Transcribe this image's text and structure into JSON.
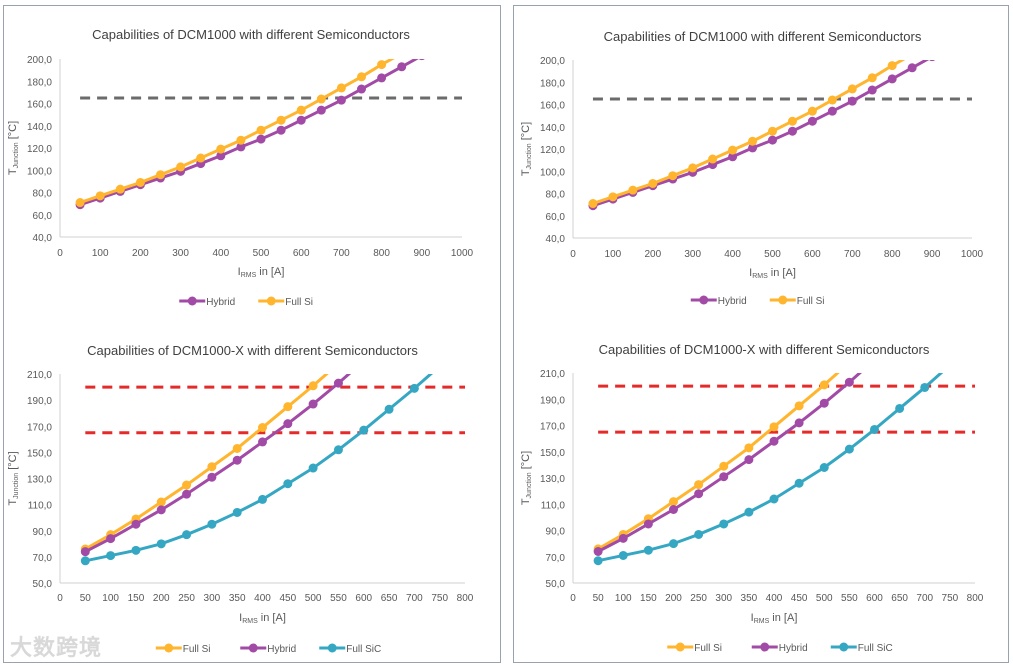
{
  "watermark": "大数跨境",
  "colors": {
    "full_si": "#FFB52E",
    "hybrid": "#A24BA6",
    "full_sic": "#35A7C3",
    "limit_grey": "#6b6b6b",
    "limit_red": "#E52A2A",
    "axis": "#d0d0d0",
    "text": "#595959"
  },
  "chart_data": [
    {
      "type": "line",
      "panel": "left",
      "title": "Capabilities of DCM1000 with different Semiconductors",
      "xlabel": "IRMS in [A]",
      "xlabel_main": "I",
      "xlabel_sub": "RMS",
      "xlabel_rest": " in [A]",
      "ylabel_main": "T",
      "ylabel_sub": "Junction",
      "ylabel_rest": " [°C]",
      "xlim": [
        0,
        1000
      ],
      "ylim": [
        40,
        200
      ],
      "xticks": [
        "0",
        "100",
        "200",
        "300",
        "400",
        "500",
        "600",
        "700",
        "800",
        "900",
        "1000"
      ],
      "yticks": [
        "40,0",
        "60,0",
        "80,0",
        "100,0",
        "120,0",
        "140,0",
        "160,0",
        "180,0",
        "200,0"
      ],
      "limits": [
        {
          "value": 165,
          "color": "limit_grey"
        }
      ],
      "x": [
        50,
        100,
        150,
        200,
        250,
        300,
        350,
        400,
        450,
        500,
        550,
        600,
        650,
        700,
        750,
        800,
        850,
        900
      ],
      "series": [
        {
          "name": "Hybrid",
          "color": "hybrid",
          "values": [
            69,
            75,
            81,
            87,
            93,
            99,
            106,
            113,
            121,
            128,
            136,
            145,
            154,
            163,
            173,
            183,
            193,
            203
          ]
        },
        {
          "name": "Full Si",
          "color": "full_si",
          "values": [
            71,
            77,
            83,
            89,
            96,
            103,
            111,
            119,
            127,
            136,
            145,
            154,
            164,
            174,
            184,
            195,
            205,
            null
          ]
        }
      ],
      "legend": "bottom"
    },
    {
      "type": "line",
      "panel": "left",
      "title": "Capabilities of DCM1000-X with different Semiconductors",
      "xlabel": "IRMS in [A]",
      "xlabel_main": "I",
      "xlabel_sub": "RMS",
      "xlabel_rest": " in [A]",
      "ylabel_main": "T",
      "ylabel_sub": "Junction",
      "ylabel_rest": " [°C]",
      "xlim": [
        0,
        800
      ],
      "ylim": [
        50,
        210
      ],
      "xticks": [
        "0",
        "50",
        "100",
        "150",
        "200",
        "250",
        "300",
        "350",
        "400",
        "450",
        "500",
        "550",
        "600",
        "650",
        "700",
        "750",
        "800"
      ],
      "yticks": [
        "50,0",
        "70,0",
        "90,0",
        "110,0",
        "130,0",
        "150,0",
        "170,0",
        "190,0",
        "210,0"
      ],
      "limits": [
        {
          "value": 165,
          "color": "limit_red"
        },
        {
          "value": 200,
          "color": "limit_red"
        }
      ],
      "x": [
        50,
        100,
        150,
        200,
        250,
        300,
        350,
        400,
        450,
        500,
        550,
        600,
        650,
        700,
        750
      ],
      "series": [
        {
          "name": "Full Si",
          "color": "full_si",
          "values": [
            76,
            87,
            99,
            112,
            125,
            139,
            153,
            169,
            185,
            201,
            218,
            null,
            null,
            null,
            null
          ]
        },
        {
          "name": "Hybrid",
          "color": "hybrid",
          "values": [
            74,
            84,
            95,
            106,
            118,
            131,
            144,
            158,
            172,
            187,
            203,
            220,
            null,
            null,
            null
          ]
        },
        {
          "name": "Full SiC",
          "color": "full_sic",
          "values": [
            67,
            71,
            75,
            80,
            87,
            95,
            104,
            114,
            126,
            138,
            152,
            167,
            183,
            199,
            216
          ]
        }
      ],
      "legend": "bottom"
    },
    {
      "type": "line",
      "panel": "right",
      "title": "Capabilities of DCM1000 with different Semiconductors",
      "xlabel": "IRMS in [A]",
      "xlabel_main": "I",
      "xlabel_sub": "RMS",
      "xlabel_rest": " in [A]",
      "ylabel_main": "T",
      "ylabel_sub": "Junction",
      "ylabel_rest": " [°C]",
      "xlim": [
        0,
        1000
      ],
      "ylim": [
        40,
        200
      ],
      "xticks": [
        "0",
        "100",
        "200",
        "300",
        "400",
        "500",
        "600",
        "700",
        "800",
        "900",
        "1000"
      ],
      "yticks": [
        "40,0",
        "60,0",
        "80,0",
        "100,0",
        "120,0",
        "140,0",
        "160,0",
        "180,0",
        "200,0"
      ],
      "limits": [
        {
          "value": 165,
          "color": "limit_grey"
        }
      ],
      "x": [
        50,
        100,
        150,
        200,
        250,
        300,
        350,
        400,
        450,
        500,
        550,
        600,
        650,
        700,
        750,
        800,
        850,
        900
      ],
      "series": [
        {
          "name": "Hybrid",
          "color": "hybrid",
          "values": [
            69,
            75,
            81,
            87,
            93,
            99,
            106,
            113,
            121,
            128,
            136,
            145,
            154,
            163,
            173,
            183,
            193,
            203
          ]
        },
        {
          "name": "Full Si",
          "color": "full_si",
          "values": [
            71,
            77,
            83,
            89,
            96,
            103,
            111,
            119,
            127,
            136,
            145,
            154,
            164,
            174,
            184,
            195,
            205,
            null
          ]
        }
      ],
      "legend": "bottom"
    },
    {
      "type": "line",
      "panel": "right",
      "title": "Capabilities of DCM1000-X with different Semiconductors",
      "xlabel": "IRMS in [A]",
      "xlabel_main": "I",
      "xlabel_sub": "RMS",
      "xlabel_rest": " in [A]",
      "ylabel_main": "T",
      "ylabel_sub": "Junction",
      "ylabel_rest": " [°C]",
      "xlim": [
        0,
        800
      ],
      "ylim": [
        50,
        210
      ],
      "xticks": [
        "0",
        "50",
        "100",
        "150",
        "200",
        "250",
        "300",
        "350",
        "400",
        "450",
        "500",
        "550",
        "600",
        "650",
        "700",
        "750",
        "800"
      ],
      "yticks": [
        "50,0",
        "70,0",
        "90,0",
        "110,0",
        "130,0",
        "150,0",
        "170,0",
        "190,0",
        "210,0"
      ],
      "limits": [
        {
          "value": 165,
          "color": "limit_red"
        },
        {
          "value": 200,
          "color": "limit_red"
        }
      ],
      "x": [
        50,
        100,
        150,
        200,
        250,
        300,
        350,
        400,
        450,
        500,
        550,
        600,
        650,
        700,
        750
      ],
      "series": [
        {
          "name": "Full Si",
          "color": "full_si",
          "values": [
            76,
            87,
            99,
            112,
            125,
            139,
            153,
            169,
            185,
            201,
            218,
            null,
            null,
            null,
            null
          ]
        },
        {
          "name": "Hybrid",
          "color": "hybrid",
          "values": [
            74,
            84,
            95,
            106,
            118,
            131,
            144,
            158,
            172,
            187,
            203,
            220,
            null,
            null,
            null
          ]
        },
        {
          "name": "Full SiC",
          "color": "full_sic",
          "values": [
            67,
            71,
            75,
            80,
            87,
            95,
            104,
            114,
            126,
            138,
            152,
            167,
            183,
            199,
            216
          ]
        }
      ],
      "legend": "bottom"
    }
  ]
}
